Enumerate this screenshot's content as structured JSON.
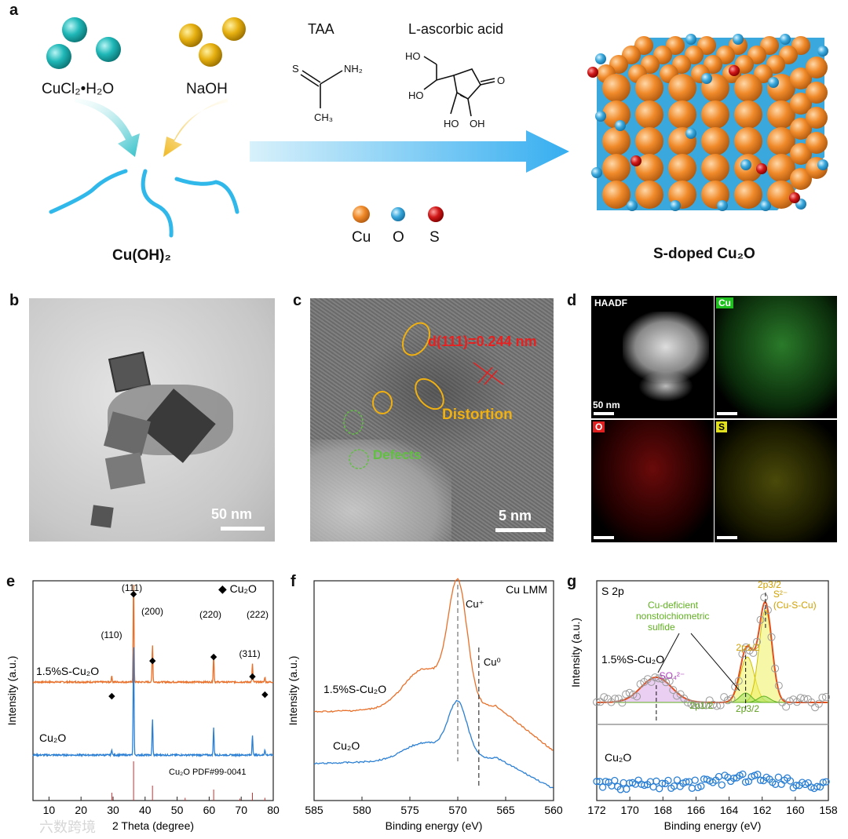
{
  "panel_labels": {
    "a": "a",
    "b": "b",
    "c": "c",
    "d": "d",
    "e": "e",
    "f": "f",
    "g": "g"
  },
  "panel_a": {
    "reagent1": "CuCl₂•H₂O",
    "reagent2": "NaOH",
    "product_left": "Cu(OH)₂",
    "taa": "TAA",
    "ascorbic": "L-ascorbic acid",
    "taa_atoms": {
      "s": "S",
      "nh2": "NH₂",
      "ch3": "CH₃"
    },
    "asc_atoms": {
      "ho1": "HO",
      "ho2": "HO",
      "oh1": "HO",
      "oh2": "OH",
      "o1": "O"
    },
    "legend": {
      "cu": "Cu",
      "o": "O",
      "s": "S"
    },
    "product_right": "S-doped Cu₂O",
    "colors": {
      "cu": "#f08a2a",
      "o": "#3aa8dc",
      "s": "#d01818",
      "teal": "#20b8b8",
      "gold": "#e6b010",
      "arrow": "#42b8f0"
    }
  },
  "panel_b": {
    "scale": "50 nm"
  },
  "panel_c": {
    "d_label": "d(111)=0.244 nm",
    "distortion": "Distortion",
    "defects": "Defects",
    "scale": "5 nm"
  },
  "panel_d": {
    "haadf": "HAADF",
    "cu": "Cu",
    "o": "O",
    "s": "S",
    "scale": "50 nm"
  },
  "chart_data": [
    {
      "type": "line",
      "panel": "e",
      "xlabel": "2 Theta (degree)",
      "ylabel": "Intensity (a.u.)",
      "xlim": [
        5,
        80
      ],
      "xticks": [
        10,
        20,
        30,
        40,
        50,
        60,
        70,
        80
      ],
      "legend": "◆ Cu₂O",
      "series": [
        {
          "name": "1.5%S-Cu₂O",
          "color": "#e8702a",
          "peaks": [
            [
              29.6,
              0.06
            ],
            [
              36.4,
              1.0
            ],
            [
              42.3,
              0.37
            ],
            [
              61.4,
              0.26
            ],
            [
              73.5,
              0.18
            ],
            [
              77.4,
              0.05
            ]
          ]
        },
        {
          "name": "Cu₂O",
          "color": "#2a7fd4",
          "peaks": [
            [
              29.6,
              0.05
            ],
            [
              36.4,
              1.0
            ],
            [
              42.3,
              0.32
            ],
            [
              61.4,
              0.24
            ],
            [
              73.5,
              0.18
            ],
            [
              77.4,
              0.05
            ]
          ]
        }
      ],
      "reference": {
        "name": "Cu₂O PDF#99-0041",
        "lines": [
          [
            29.6,
            0.2
          ],
          [
            36.4,
            1.0
          ],
          [
            42.3,
            0.38
          ],
          [
            52.5,
            0.07
          ],
          [
            61.4,
            0.28
          ],
          [
            69.6,
            0.05
          ],
          [
            73.5,
            0.2
          ],
          [
            77.4,
            0.07
          ]
        ]
      },
      "annotations": [
        "(110)",
        "(111)",
        "(200)",
        "(220)",
        "(311)",
        "(222)"
      ]
    },
    {
      "type": "line",
      "panel": "f",
      "title": "Cu LMM",
      "xlabel": "Binding energy (eV)",
      "ylabel": "Intensity (a.u.)",
      "xlim": [
        585,
        560
      ],
      "xticks": [
        585,
        580,
        575,
        570,
        565,
        560
      ],
      "series": [
        {
          "name": "1.5%S-Cu₂O",
          "color": "#e8702a"
        },
        {
          "name": "Cu₂O",
          "color": "#2a7fd4"
        }
      ],
      "vlines": [
        {
          "x": 570,
          "label": "Cu⁺"
        },
        {
          "x": 567.8,
          "label": "Cu⁰"
        }
      ]
    },
    {
      "type": "scatter",
      "panel": "g",
      "title": "S 2p",
      "xlabel": "Binding energy (eV)",
      "ylabel": "Intensity (a.u.)",
      "xlim": [
        172,
        158
      ],
      "xticks": [
        172,
        170,
        168,
        166,
        164,
        162,
        160,
        158
      ],
      "series": [
        {
          "name": "1.5%S-Cu₂O",
          "color": "#888888"
        },
        {
          "name": "Cu₂O",
          "color": "#2a7fd4"
        }
      ],
      "annotations": {
        "so4": "SO₄²⁻",
        "cudef": "Cu-deficient nonstoichiometric sulfide",
        "s2": "S²⁻",
        "cuscu": "(Cu-S-Cu)",
        "p32": "2p3/2",
        "p12": "2p1/2",
        "p12b": "2p1/2",
        "p32b": "2p3/2"
      }
    }
  ],
  "watermark": "六数跨境"
}
